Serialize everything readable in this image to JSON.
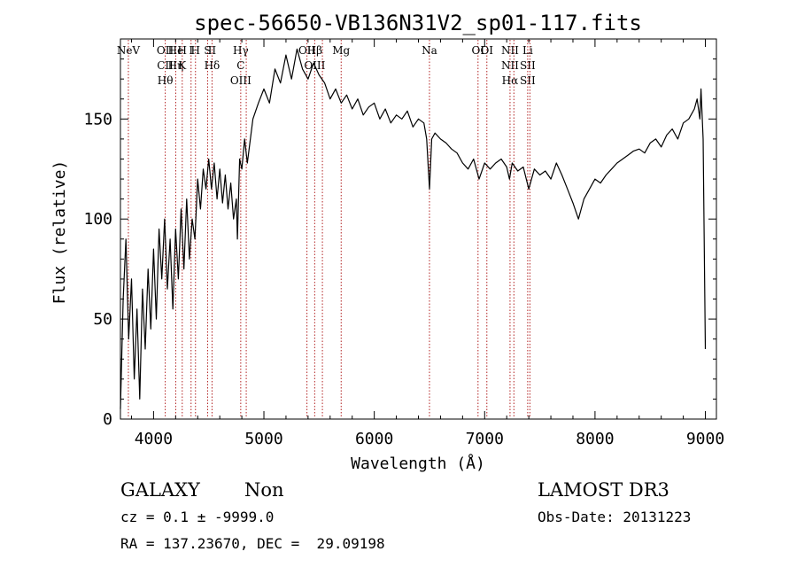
{
  "chart_data": {
    "type": "line",
    "title": "spec-56650-VB136N31V2_sp01-117.fits",
    "xlabel": "Wavelength (Å)",
    "ylabel": "Flux (relative)",
    "xlim": [
      3700,
      9100
    ],
    "ylim": [
      0,
      190
    ],
    "x_ticks": [
      4000,
      5000,
      6000,
      7000,
      8000,
      9000
    ],
    "y_ticks": [
      0,
      50,
      100,
      150
    ],
    "grid": false,
    "series": [
      {
        "color": "#000000",
        "points": [
          [
            3700,
            5
          ],
          [
            3725,
            60
          ],
          [
            3750,
            90
          ],
          [
            3775,
            40
          ],
          [
            3800,
            70
          ],
          [
            3825,
            20
          ],
          [
            3850,
            55
          ],
          [
            3875,
            10
          ],
          [
            3900,
            65
          ],
          [
            3925,
            35
          ],
          [
            3950,
            75
          ],
          [
            3975,
            45
          ],
          [
            4000,
            85
          ],
          [
            4025,
            50
          ],
          [
            4050,
            95
          ],
          [
            4075,
            70
          ],
          [
            4100,
            100
          ],
          [
            4125,
            65
          ],
          [
            4150,
            90
          ],
          [
            4175,
            55
          ],
          [
            4200,
            95
          ],
          [
            4225,
            70
          ],
          [
            4250,
            105
          ],
          [
            4275,
            75
          ],
          [
            4300,
            110
          ],
          [
            4325,
            80
          ],
          [
            4350,
            100
          ],
          [
            4375,
            90
          ],
          [
            4400,
            120
          ],
          [
            4425,
            105
          ],
          [
            4450,
            125
          ],
          [
            4475,
            115
          ],
          [
            4500,
            130
          ],
          [
            4525,
            115
          ],
          [
            4550,
            128
          ],
          [
            4575,
            110
          ],
          [
            4600,
            125
          ],
          [
            4625,
            108
          ],
          [
            4650,
            122
          ],
          [
            4675,
            105
          ],
          [
            4700,
            118
          ],
          [
            4725,
            100
          ],
          [
            4750,
            110
          ],
          [
            4760,
            90
          ],
          [
            4780,
            130
          ],
          [
            4800,
            125
          ],
          [
            4825,
            140
          ],
          [
            4850,
            128
          ],
          [
            4900,
            150
          ],
          [
            4950,
            158
          ],
          [
            5000,
            165
          ],
          [
            5050,
            158
          ],
          [
            5100,
            175
          ],
          [
            5150,
            168
          ],
          [
            5200,
            182
          ],
          [
            5250,
            170
          ],
          [
            5300,
            185
          ],
          [
            5350,
            175
          ],
          [
            5400,
            170
          ],
          [
            5450,
            178
          ],
          [
            5500,
            172
          ],
          [
            5550,
            168
          ],
          [
            5600,
            160
          ],
          [
            5650,
            165
          ],
          [
            5700,
            158
          ],
          [
            5750,
            162
          ],
          [
            5800,
            155
          ],
          [
            5850,
            160
          ],
          [
            5900,
            152
          ],
          [
            5950,
            156
          ],
          [
            6000,
            158
          ],
          [
            6050,
            150
          ],
          [
            6100,
            155
          ],
          [
            6150,
            148
          ],
          [
            6200,
            152
          ],
          [
            6250,
            150
          ],
          [
            6300,
            154
          ],
          [
            6350,
            146
          ],
          [
            6400,
            150
          ],
          [
            6450,
            148
          ],
          [
            6475,
            140
          ],
          [
            6490,
            125
          ],
          [
            6500,
            115
          ],
          [
            6520,
            140
          ],
          [
            6550,
            143
          ],
          [
            6600,
            140
          ],
          [
            6650,
            138
          ],
          [
            6700,
            135
          ],
          [
            6750,
            133
          ],
          [
            6800,
            128
          ],
          [
            6850,
            125
          ],
          [
            6900,
            130
          ],
          [
            6950,
            120
          ],
          [
            7000,
            128
          ],
          [
            7050,
            125
          ],
          [
            7100,
            128
          ],
          [
            7150,
            130
          ],
          [
            7200,
            126
          ],
          [
            7225,
            120
          ],
          [
            7250,
            128
          ],
          [
            7300,
            124
          ],
          [
            7350,
            126
          ],
          [
            7400,
            115
          ],
          [
            7450,
            125
          ],
          [
            7500,
            122
          ],
          [
            7550,
            124
          ],
          [
            7600,
            120
          ],
          [
            7650,
            128
          ],
          [
            7700,
            122
          ],
          [
            7750,
            115
          ],
          [
            7800,
            108
          ],
          [
            7850,
            100
          ],
          [
            7900,
            110
          ],
          [
            7950,
            115
          ],
          [
            8000,
            120
          ],
          [
            8050,
            118
          ],
          [
            8100,
            122
          ],
          [
            8150,
            125
          ],
          [
            8200,
            128
          ],
          [
            8250,
            130
          ],
          [
            8300,
            132
          ],
          [
            8350,
            134
          ],
          [
            8400,
            135
          ],
          [
            8450,
            133
          ],
          [
            8500,
            138
          ],
          [
            8550,
            140
          ],
          [
            8600,
            136
          ],
          [
            8650,
            142
          ],
          [
            8700,
            145
          ],
          [
            8750,
            140
          ],
          [
            8800,
            148
          ],
          [
            8850,
            150
          ],
          [
            8900,
            155
          ],
          [
            8925,
            160
          ],
          [
            8950,
            150
          ],
          [
            8960,
            165
          ],
          [
            8980,
            140
          ],
          [
            9000,
            35
          ]
        ]
      }
    ],
    "line_markers": [
      {
        "wavelength": 3772,
        "labels": [
          "NeV"
        ]
      },
      {
        "wavelength": 4106,
        "labels": [
          "OII",
          "CII",
          "Hθ"
        ]
      },
      {
        "wavelength": 4201,
        "labels": [
          "He",
          "Hη"
        ]
      },
      {
        "wavelength": 4260,
        "labels": [
          "H",
          "K"
        ]
      },
      {
        "wavelength": 4340,
        "labels": [
          "I"
        ]
      },
      {
        "wavelength": 4380,
        "labels": [
          "H"
        ]
      },
      {
        "wavelength": 4490,
        "labels": [
          "S"
        ]
      },
      {
        "wavelength": 4530,
        "labels": [
          "II",
          "Hδ"
        ]
      },
      {
        "wavelength": 4790,
        "labels": [
          "Hγ",
          "C",
          "OIII"
        ]
      },
      {
        "wavelength": 4840,
        "labels": [
          ""
        ]
      },
      {
        "wavelength": 5390,
        "labels": [
          "OII"
        ]
      },
      {
        "wavelength": 5460,
        "labels": [
          "Hβ",
          "OIII"
        ]
      },
      {
        "wavelength": 5530,
        "labels": [
          ""
        ]
      },
      {
        "wavelength": 5700,
        "labels": [
          "Mg"
        ]
      },
      {
        "wavelength": 6500,
        "labels": [
          "Na"
        ]
      },
      {
        "wavelength": 6940,
        "labels": [
          "OI"
        ]
      },
      {
        "wavelength": 7020,
        "labels": [
          "OI"
        ]
      },
      {
        "wavelength": 7230,
        "labels": [
          "NII",
          "NII",
          "Hα"
        ]
      },
      {
        "wavelength": 7265,
        "labels": [
          ""
        ]
      },
      {
        "wavelength": 7390,
        "labels": [
          "Li",
          "SII",
          "SII"
        ]
      },
      {
        "wavelength": 7410,
        "labels": [
          ""
        ]
      }
    ]
  },
  "footer": {
    "class_label": "GALAXY",
    "subclass_label": "Non",
    "survey_label": "LAMOST DR3",
    "redshift_text": "cz = 0.1 ± -9999.0",
    "obs_date_text": "Obs-Date: 20131223",
    "coords_text": "RA = 137.23670, DEC =  29.09198"
  }
}
